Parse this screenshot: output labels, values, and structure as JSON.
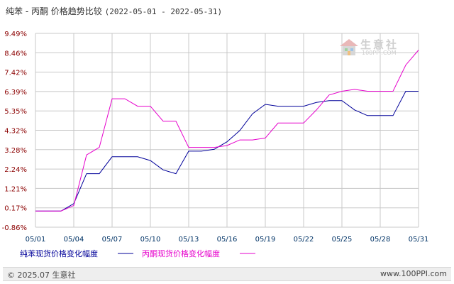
{
  "title": {
    "main": "纯苯 - 丙酮 价格趋势比较",
    "range": "(2022-05-01 - 2022-05-31)"
  },
  "logo": {
    "brand": "生意社",
    "url": "100PPI.COM"
  },
  "footer": {
    "copyright": "© 2025.07 生意社",
    "site": "www.100PPI.com"
  },
  "colors": {
    "series1": "#000099",
    "series2": "#e600cc",
    "grid": "#c8c8c8"
  },
  "chart_data": {
    "type": "line",
    "y_ticks": [
      "9.49%",
      "8.46%",
      "7.42%",
      "6.39%",
      "5.35%",
      "4.32%",
      "3.28%",
      "2.24%",
      "1.21%",
      "0.17%",
      "-0.86%"
    ],
    "ylim": [
      -0.86,
      9.49
    ],
    "x_ticks": [
      "05/01",
      "05/04",
      "05/07",
      "05/10",
      "05/13",
      "05/16",
      "05/19",
      "05/22",
      "05/25",
      "05/28",
      "05/31"
    ],
    "x": [
      "05/01",
      "05/02",
      "05/03",
      "05/04",
      "05/05",
      "05/06",
      "05/07",
      "05/08",
      "05/09",
      "05/10",
      "05/11",
      "05/12",
      "05/13",
      "05/14",
      "05/15",
      "05/16",
      "05/17",
      "05/18",
      "05/19",
      "05/20",
      "05/21",
      "05/22",
      "05/23",
      "05/24",
      "05/25",
      "05/26",
      "05/27",
      "05/28",
      "05/29",
      "05/30",
      "05/31"
    ],
    "grid": true,
    "legend": "bottom-left",
    "series": [
      {
        "name": "纯苯现货价格变化幅度",
        "color": "#000099",
        "values": [
          0,
          0,
          0,
          0.4,
          2.0,
          2.0,
          2.9,
          2.9,
          2.9,
          2.7,
          2.2,
          2.0,
          3.2,
          3.2,
          3.3,
          3.7,
          4.3,
          5.2,
          5.7,
          5.6,
          5.6,
          5.6,
          5.8,
          5.9,
          5.9,
          5.4,
          5.1,
          5.1,
          5.1,
          6.4,
          6.4
        ]
      },
      {
        "name": "丙酮现货价格变化幅度",
        "color": "#e600cc",
        "values": [
          0,
          0,
          0,
          0.3,
          3.0,
          3.4,
          6.0,
          6.0,
          5.6,
          5.6,
          4.8,
          4.8,
          3.4,
          3.4,
          3.4,
          3.5,
          3.8,
          3.8,
          3.9,
          4.7,
          4.7,
          4.7,
          5.4,
          6.2,
          6.4,
          6.5,
          6.4,
          6.4,
          6.4,
          7.8,
          8.6
        ]
      }
    ]
  }
}
